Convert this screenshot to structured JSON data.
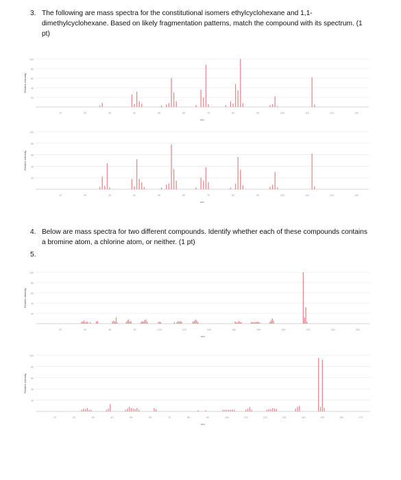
{
  "questions": {
    "q3": {
      "number": "3.",
      "text": "The following are mass spectra for the constitutional isomers ethylcyclohexane and 1,1-dimethylcyclohexane. Based on likely fragmentation patterns, match the compound with its spectrum. (1 pt)"
    },
    "q4": {
      "number": "4.",
      "text": "Below are mass spectra for two different compounds. Identify whether each of these compounds contains a bromine atom, a chlorine atom, or neither. (1 pt)"
    },
    "q5_number": "5."
  },
  "colors": {
    "peak": "#e8898f",
    "grid": "#e6e6e6",
    "axis": "#c8c8c8",
    "tick": "#9a9a9a"
  },
  "chart_data": [
    {
      "type": "bar",
      "id": "spectrum-1",
      "xlabel": "m/z",
      "ylabel": "Relative Intensity",
      "xticks": [
        10,
        20,
        30,
        40,
        50,
        60,
        70,
        80,
        90,
        100,
        110,
        120,
        130
      ],
      "yticks": [
        20,
        40,
        60,
        80,
        100
      ],
      "xlim": [
        0,
        135
      ],
      "ylim": [
        0,
        100
      ],
      "peaks": [
        [
          26,
          3
        ],
        [
          27,
          8
        ],
        [
          39,
          26
        ],
        [
          40,
          6
        ],
        [
          41,
          32
        ],
        [
          42,
          12
        ],
        [
          43,
          7
        ],
        [
          51,
          3
        ],
        [
          53,
          5
        ],
        [
          54,
          8
        ],
        [
          55,
          60
        ],
        [
          56,
          30
        ],
        [
          57,
          12
        ],
        [
          65,
          4
        ],
        [
          67,
          36
        ],
        [
          68,
          20
        ],
        [
          69,
          88
        ],
        [
          70,
          6
        ],
        [
          77,
          4
        ],
        [
          79,
          12
        ],
        [
          80,
          7
        ],
        [
          81,
          48
        ],
        [
          82,
          35
        ],
        [
          83,
          100
        ],
        [
          84,
          8
        ],
        [
          95,
          4
        ],
        [
          96,
          6
        ],
        [
          97,
          22
        ],
        [
          98,
          2
        ],
        [
          112,
          62
        ],
        [
          113,
          5
        ]
      ]
    },
    {
      "type": "bar",
      "id": "spectrum-2",
      "xlabel": "m/z",
      "ylabel": "Relative Intensity",
      "xticks": [
        10,
        20,
        30,
        40,
        50,
        60,
        70,
        80,
        90,
        100,
        110,
        120,
        130
      ],
      "yticks": [
        20,
        40,
        60,
        80,
        100
      ],
      "xlim": [
        0,
        135
      ],
      "ylim": [
        0,
        100
      ],
      "peaks": [
        [
          26,
          4
        ],
        [
          27,
          22
        ],
        [
          28,
          6
        ],
        [
          29,
          45
        ],
        [
          30,
          3
        ],
        [
          39,
          18
        ],
        [
          40,
          5
        ],
        [
          41,
          52
        ],
        [
          42,
          18
        ],
        [
          43,
          12
        ],
        [
          44,
          4
        ],
        [
          51,
          3
        ],
        [
          53,
          8
        ],
        [
          54,
          10
        ],
        [
          55,
          78
        ],
        [
          56,
          35
        ],
        [
          57,
          15
        ],
        [
          65,
          3
        ],
        [
          67,
          20
        ],
        [
          68,
          15
        ],
        [
          69,
          38
        ],
        [
          70,
          12
        ],
        [
          79,
          3
        ],
        [
          81,
          10
        ],
        [
          82,
          56
        ],
        [
          83,
          34
        ],
        [
          84,
          7
        ],
        [
          95,
          4
        ],
        [
          96,
          8
        ],
        [
          97,
          30
        ],
        [
          98,
          3
        ],
        [
          112,
          62
        ],
        [
          113,
          5
        ]
      ]
    },
    {
      "type": "bar",
      "id": "spectrum-3",
      "xlabel": "m/z",
      "ylabel": "Relative Intensity",
      "xticks": [
        20,
        40,
        60,
        80,
        100,
        120,
        140,
        160,
        180,
        200,
        220,
        240,
        260
      ],
      "yticks": [
        20,
        40,
        60,
        80,
        100
      ],
      "xlim": [
        0,
        270
      ],
      "ylim": [
        0,
        100
      ],
      "peaks": [
        [
          37,
          3
        ],
        [
          38,
          4
        ],
        [
          39,
          6
        ],
        [
          40,
          2
        ],
        [
          41,
          4
        ],
        [
          42,
          3
        ],
        [
          44,
          3
        ],
        [
          49,
          4
        ],
        [
          50,
          5
        ],
        [
          62,
          4
        ],
        [
          63,
          6
        ],
        [
          64,
          4
        ],
        [
          65,
          12
        ],
        [
          66,
          2
        ],
        [
          73,
          3
        ],
        [
          74,
          6
        ],
        [
          75,
          8
        ],
        [
          76,
          4
        ],
        [
          77,
          5
        ],
        [
          85,
          3
        ],
        [
          86,
          5
        ],
        [
          87,
          4
        ],
        [
          88,
          7
        ],
        [
          89,
          8
        ],
        [
          90,
          4
        ],
        [
          99,
          3
        ],
        [
          100,
          4
        ],
        [
          101,
          3
        ],
        [
          112,
          3
        ],
        [
          114,
          3
        ],
        [
          115,
          5
        ],
        [
          116,
          4
        ],
        [
          117,
          5
        ],
        [
          118,
          3
        ],
        [
          127,
          4
        ],
        [
          128,
          5
        ],
        [
          129,
          8
        ],
        [
          130,
          6
        ],
        [
          131,
          3
        ],
        [
          161,
          4
        ],
        [
          162,
          3
        ],
        [
          163,
          2
        ],
        [
          164,
          5
        ],
        [
          165,
          3
        ],
        [
          166,
          3
        ],
        [
          174,
          3
        ],
        [
          175,
          3
        ],
        [
          176,
          3
        ],
        [
          177,
          3
        ],
        [
          178,
          3
        ],
        [
          179,
          4
        ],
        [
          180,
          3
        ],
        [
          181,
          2
        ],
        [
          189,
          3
        ],
        [
          190,
          6
        ],
        [
          191,
          10
        ],
        [
          192,
          6
        ],
        [
          216,
          100
        ],
        [
          217,
          12
        ],
        [
          218,
          32
        ],
        [
          219,
          4
        ]
      ]
    },
    {
      "type": "bar",
      "id": "spectrum-4",
      "xlabel": "m/z",
      "ylabel": "Relative Intensity",
      "xticks": [
        10,
        20,
        30,
        40,
        50,
        60,
        70,
        80,
        90,
        100,
        110,
        120,
        130,
        140,
        150,
        160,
        170
      ],
      "yticks": [
        20,
        40,
        60,
        80,
        100
      ],
      "xlim": [
        0,
        175
      ],
      "ylim": [
        0,
        100
      ],
      "peaks": [
        [
          24,
          3
        ],
        [
          25,
          5
        ],
        [
          26,
          4
        ],
        [
          27,
          6
        ],
        [
          28,
          3
        ],
        [
          29,
          3
        ],
        [
          37,
          3
        ],
        [
          38,
          5
        ],
        [
          39,
          13
        ],
        [
          47,
          3
        ],
        [
          48,
          5
        ],
        [
          49,
          8
        ],
        [
          50,
          6
        ],
        [
          51,
          5
        ],
        [
          52,
          4
        ],
        [
          53,
          6
        ],
        [
          54,
          3
        ],
        [
          62,
          6
        ],
        [
          63,
          4
        ],
        [
          85,
          2
        ],
        [
          89,
          2
        ],
        [
          98,
          3
        ],
        [
          99,
          3
        ],
        [
          100,
          3
        ],
        [
          101,
          3
        ],
        [
          102,
          3
        ],
        [
          103,
          3
        ],
        [
          104,
          3
        ],
        [
          110,
          3
        ],
        [
          111,
          5
        ],
        [
          112,
          8
        ],
        [
          113,
          3
        ],
        [
          121,
          3
        ],
        [
          122,
          4
        ],
        [
          123,
          4
        ],
        [
          124,
          6
        ],
        [
          125,
          5
        ],
        [
          126,
          4
        ],
        [
          136,
          5
        ],
        [
          137,
          8
        ],
        [
          138,
          10
        ],
        [
          148,
          95
        ],
        [
          149,
          8
        ],
        [
          150,
          92
        ],
        [
          151,
          6
        ]
      ]
    }
  ]
}
